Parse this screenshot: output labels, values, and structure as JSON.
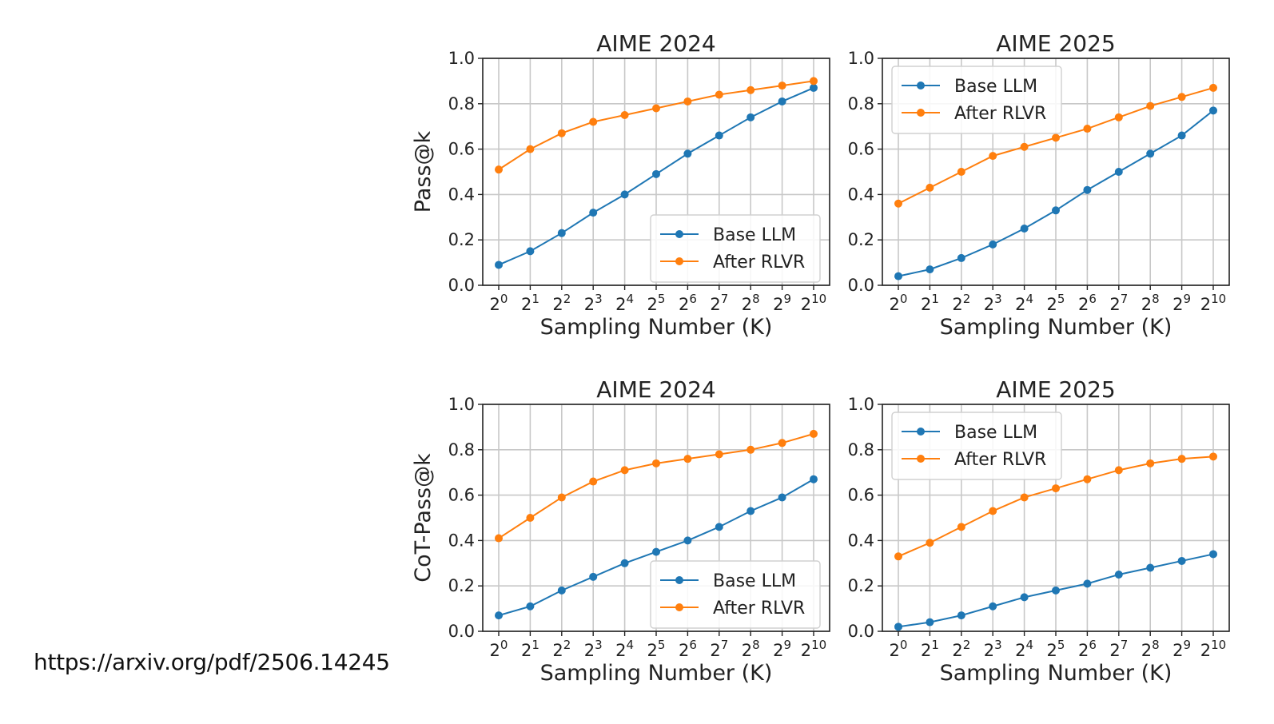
{
  "source_url": "https://arxiv.org/pdf/2506.14245",
  "colors": {
    "base": "#1f77b4",
    "rlvr": "#ff7f0e",
    "grid": "#c8c8c8"
  },
  "chart_data": [
    {
      "type": "line",
      "title": "AIME 2024",
      "xlabel": "Sampling Number (K)",
      "ylabel": "Pass@k",
      "x_base": "2",
      "x_exponents": [
        "0",
        "1",
        "2",
        "3",
        "4",
        "5",
        "6",
        "7",
        "8",
        "9",
        "10"
      ],
      "ylim": [
        0,
        1
      ],
      "yticks": [
        "0.0",
        "0.2",
        "0.4",
        "0.6",
        "0.8",
        "1.0"
      ],
      "grid": true,
      "legend_position": "lower-right",
      "series": [
        {
          "name": "Base LLM",
          "values": [
            0.09,
            0.15,
            0.23,
            0.32,
            0.4,
            0.49,
            0.58,
            0.66,
            0.74,
            0.81,
            0.87
          ]
        },
        {
          "name": "After RLVR",
          "values": [
            0.51,
            0.6,
            0.67,
            0.72,
            0.75,
            0.78,
            0.81,
            0.84,
            0.86,
            0.88,
            0.9
          ]
        }
      ]
    },
    {
      "type": "line",
      "title": "AIME 2025",
      "xlabel": "Sampling Number (K)",
      "ylabel": "",
      "x_base": "2",
      "x_exponents": [
        "0",
        "1",
        "2",
        "3",
        "4",
        "5",
        "6",
        "7",
        "8",
        "9",
        "10"
      ],
      "ylim": [
        0,
        1
      ],
      "yticks": [
        "0.0",
        "0.2",
        "0.4",
        "0.6",
        "0.8",
        "1.0"
      ],
      "grid": true,
      "legend_position": "upper-left",
      "series": [
        {
          "name": "Base LLM",
          "values": [
            0.04,
            0.07,
            0.12,
            0.18,
            0.25,
            0.33,
            0.42,
            0.5,
            0.58,
            0.66,
            0.77
          ]
        },
        {
          "name": "After RLVR",
          "values": [
            0.36,
            0.43,
            0.5,
            0.57,
            0.61,
            0.65,
            0.69,
            0.74,
            0.79,
            0.83,
            0.87
          ]
        }
      ]
    },
    {
      "type": "line",
      "title": "AIME 2024",
      "xlabel": "Sampling Number (K)",
      "ylabel": "CoT-Pass@k",
      "x_base": "2",
      "x_exponents": [
        "0",
        "1",
        "2",
        "3",
        "4",
        "5",
        "6",
        "7",
        "8",
        "9",
        "10"
      ],
      "ylim": [
        0,
        1
      ],
      "yticks": [
        "0.0",
        "0.2",
        "0.4",
        "0.6",
        "0.8",
        "1.0"
      ],
      "grid": true,
      "legend_position": "lower-right",
      "series": [
        {
          "name": "Base LLM",
          "values": [
            0.07,
            0.11,
            0.18,
            0.24,
            0.3,
            0.35,
            0.4,
            0.46,
            0.53,
            0.59,
            0.67
          ]
        },
        {
          "name": "After RLVR",
          "values": [
            0.41,
            0.5,
            0.59,
            0.66,
            0.71,
            0.74,
            0.76,
            0.78,
            0.8,
            0.83,
            0.87
          ]
        }
      ]
    },
    {
      "type": "line",
      "title": "AIME 2025",
      "xlabel": "Sampling Number (K)",
      "ylabel": "",
      "x_base": "2",
      "x_exponents": [
        "0",
        "1",
        "2",
        "3",
        "4",
        "5",
        "6",
        "7",
        "8",
        "9",
        "10"
      ],
      "ylim": [
        0,
        1
      ],
      "yticks": [
        "0.0",
        "0.2",
        "0.4",
        "0.6",
        "0.8",
        "1.0"
      ],
      "grid": true,
      "legend_position": "upper-left",
      "series": [
        {
          "name": "Base LLM",
          "values": [
            0.02,
            0.04,
            0.07,
            0.11,
            0.15,
            0.18,
            0.21,
            0.25,
            0.28,
            0.31,
            0.34
          ]
        },
        {
          "name": "After RLVR",
          "values": [
            0.33,
            0.39,
            0.46,
            0.53,
            0.59,
            0.63,
            0.67,
            0.71,
            0.74,
            0.76,
            0.77
          ]
        }
      ]
    }
  ]
}
